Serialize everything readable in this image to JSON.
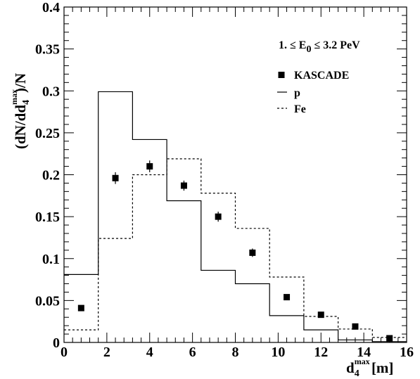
{
  "chart_data": {
    "type": "histogram",
    "xlim": [
      0,
      16
    ],
    "ylim": [
      0,
      0.4
    ],
    "x_ticks": [
      0,
      2,
      4,
      6,
      8,
      10,
      12,
      14,
      16
    ],
    "y_ticks": [
      0,
      0.05,
      0.1,
      0.15,
      0.2,
      0.25,
      0.3,
      0.35,
      0.4
    ],
    "x_tick_labels": [
      "0",
      "2",
      "4",
      "6",
      "8",
      "10",
      "12",
      "14",
      "16"
    ],
    "y_tick_labels": [
      "0",
      "0.05",
      "0.1",
      "0.15",
      "0.2",
      "0.25",
      "0.3",
      "0.35",
      "0.4"
    ],
    "xlabel": {
      "main": "d",
      "sup": "max",
      "sub": "4",
      "unit": " [m]"
    },
    "ylabel": {
      "pre": "(dN/dd",
      "sup": "max",
      "sub": "4",
      "post": ")/N"
    },
    "annotation": {
      "pre": "1. ≤ E",
      "sub": "0",
      "post": " ≤ 3.2 PeV"
    },
    "bin_edges": [
      0,
      1.6,
      3.2,
      4.8,
      6.4,
      8.0,
      9.6,
      11.2,
      12.8,
      14.4,
      16.0
    ],
    "series": [
      {
        "name": "KASCADE",
        "style": "markers",
        "x": [
          0.8,
          2.4,
          4.0,
          5.6,
          7.2,
          8.8,
          10.4,
          12.0,
          13.6,
          15.2
        ],
        "values": [
          0.041,
          0.196,
          0.21,
          0.187,
          0.15,
          0.107,
          0.054,
          0.033,
          0.019,
          0.005
        ],
        "errors": [
          0.003,
          0.007,
          0.007,
          0.006,
          0.006,
          0.005,
          0.003,
          0.002,
          0.002,
          0.001
        ]
      },
      {
        "name": "p",
        "style": "solid",
        "values": [
          0.081,
          0.299,
          0.242,
          0.169,
          0.086,
          0.07,
          0.032,
          0.015,
          0.003,
          0.001
        ]
      },
      {
        "name": "Fe",
        "style": "dashed",
        "values": [
          0.015,
          0.124,
          0.2,
          0.219,
          0.178,
          0.136,
          0.078,
          0.031,
          0.016,
          0.006
        ]
      }
    ]
  }
}
